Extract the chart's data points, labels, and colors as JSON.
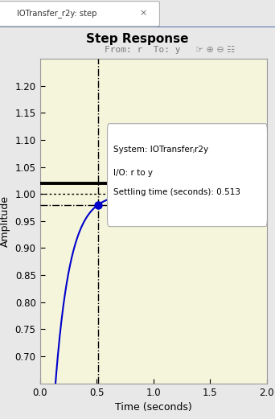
{
  "title": "Step Response",
  "subtitle": "From: r  To: y",
  "xlabel": "Time (seconds)",
  "ylabel": "Amplitude",
  "tab_label": "IOTransfer_r2y: step",
  "xlim": [
    0,
    2.0
  ],
  "ylim": [
    0.65,
    1.25
  ],
  "yticks": [
    0.7,
    0.75,
    0.8,
    0.85,
    0.9,
    0.95,
    1.0,
    1.05,
    1.1,
    1.15,
    1.2
  ],
  "xticks": [
    0,
    0.5,
    1.0,
    1.5,
    2.0
  ],
  "settling_time": 0.513,
  "settling_value": 0.98,
  "final_value": 1.0,
  "bg_color": "#f5f5dc",
  "outer_bg": "#e8e8e8",
  "plot_color": "#0000cc",
  "marker_color": "#0000cc",
  "thick_line_y": 1.02,
  "dotted_line_y": 1.0,
  "dash_dot_line_y": 0.98,
  "curve_a": 7.63,
  "tab_bg": "#f0f0f0",
  "tab_border": "#7a9cc9",
  "title_fontsize": 11,
  "subtitle_fontsize": 8,
  "axis_label_fontsize": 9,
  "tick_fontsize": 8.5
}
